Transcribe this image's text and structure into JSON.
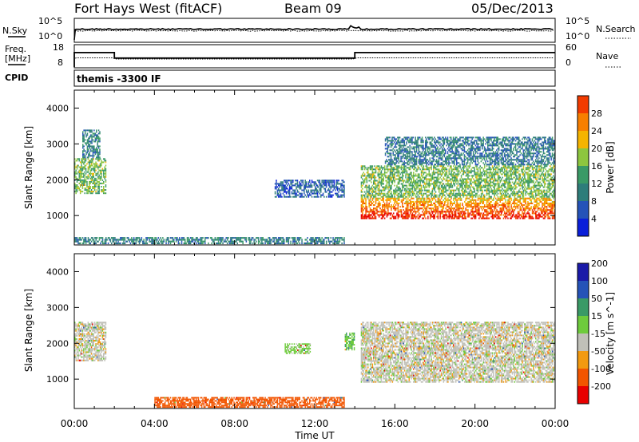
{
  "header": {
    "station": "Fort Hays West (fitACF)",
    "beam": "Beam 09",
    "date": "05/Dec/2013"
  },
  "top_panel": {
    "left_label": "N.Sky",
    "right_label": "N.Search",
    "tick_top": "10^5",
    "tick_bottom": "10^0"
  },
  "freq_panel": {
    "left_label_1": "Freq.",
    "left_label_2": "[MHz]",
    "right_label": "Nave",
    "left_ticks": [
      "18",
      "8"
    ],
    "right_ticks": [
      "60",
      "0"
    ],
    "freq_steps": [
      {
        "start_h": 0.0,
        "end_h": 2.0,
        "value": 15
      },
      {
        "start_h": 2.0,
        "end_h": 14.0,
        "value": 12
      },
      {
        "start_h": 14.0,
        "end_h": 24.0,
        "value": 15
      }
    ]
  },
  "cpid": {
    "label": "CPID",
    "text": "themis -3300 IF"
  },
  "colors": {
    "power": [
      "#0a1fd9",
      "#2553b8",
      "#2e7d7a",
      "#3a9a66",
      "#8dc63f",
      "#f5b400",
      "#f77f00",
      "#f23b00",
      "#e80000"
    ],
    "velocity": [
      "#e80000",
      "#f25500",
      "#f29a10",
      "#c0c0b8",
      "#6ecb3c",
      "#3a9a66",
      "#2553b8",
      "#1a1aa8"
    ]
  },
  "chart_data": [
    {
      "type": "heatmap",
      "name": "power",
      "ylabel": "Slant Range [km]",
      "y_ticks": [
        1000,
        2000,
        3000,
        4000
      ],
      "ylim": [
        180,
        4500
      ],
      "xlim": [
        0,
        24
      ],
      "colorbar_label": "Power [dB]",
      "colorbar_ticks": [
        "4",
        "8",
        "12",
        "16",
        "20",
        "24",
        "28"
      ],
      "colorbar_range": [
        0,
        31
      ],
      "regions": [
        {
          "t0": 0.0,
          "t1": 1.6,
          "r0": 1600,
          "r1": 2600,
          "level": 14
        },
        {
          "t0": 0.4,
          "t1": 1.3,
          "r0": 2600,
          "r1": 3400,
          "level": 9
        },
        {
          "t0": 14.3,
          "t1": 24.0,
          "r0": 900,
          "r1": 1500,
          "level": 28
        },
        {
          "t0": 14.3,
          "t1": 24.0,
          "r0": 1500,
          "r1": 2400,
          "level": 14
        },
        {
          "t0": 15.5,
          "t1": 24.0,
          "r0": 2400,
          "r1": 3200,
          "level": 8
        },
        {
          "t0": 0.0,
          "t1": 13.5,
          "r0": 200,
          "r1": 400,
          "level": 9
        },
        {
          "t0": 10.0,
          "t1": 13.5,
          "r0": 1500,
          "r1": 2000,
          "level": 6
        }
      ]
    },
    {
      "type": "heatmap",
      "name": "velocity",
      "ylabel": "Slant Range [km]",
      "y_ticks": [
        1000,
        2000,
        3000,
        4000
      ],
      "ylim": [
        180,
        4500
      ],
      "xlim": [
        0,
        24
      ],
      "colorbar_label": "Velocity [m s^-1]",
      "colorbar_ticks": [
        "-200",
        "-100",
        "-50",
        "-15",
        "15",
        "50",
        "100",
        "200"
      ],
      "regions": [
        {
          "t0": 0.0,
          "t1": 1.6,
          "r0": 1500,
          "r1": 2600,
          "value": 0
        },
        {
          "t0": 14.3,
          "t1": 24.0,
          "r0": 900,
          "r1": 2600,
          "value": 0
        },
        {
          "t0": 4.0,
          "t1": 13.5,
          "r0": 200,
          "r1": 500,
          "value": -70
        },
        {
          "t0": 10.5,
          "t1": 11.8,
          "r0": 1700,
          "r1": 2000,
          "value": 30
        },
        {
          "t0": 13.5,
          "t1": 14.0,
          "r0": 1800,
          "r1": 2300,
          "value": 40
        }
      ]
    }
  ],
  "x_axis": {
    "tick_labels": [
      "00:00",
      "04:00",
      "08:00",
      "12:00",
      "16:00",
      "20:00",
      "00:00"
    ],
    "label": "Time UT"
  }
}
